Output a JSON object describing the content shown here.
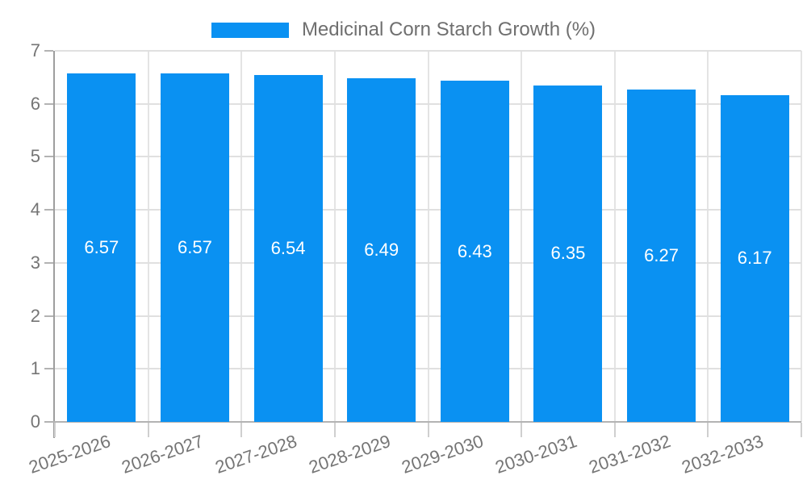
{
  "legend": {
    "label": "Medicinal Corn Starch Growth (%)"
  },
  "chart_data": {
    "type": "bar",
    "title": "Medicinal Corn Starch Growth (%)",
    "legend_position": "top-center",
    "grid": true,
    "categories": [
      "2025-2026",
      "2026-2027",
      "2027-2028",
      "2028-2029",
      "2029-2030",
      "2030-2031",
      "2031-2032",
      "2032-2033"
    ],
    "values": [
      6.57,
      6.57,
      6.54,
      6.49,
      6.43,
      6.35,
      6.27,
      6.17
    ],
    "bar_labels": [
      "6.57",
      "6.57",
      "6.54",
      "6.49",
      "6.43",
      "6.35",
      "6.27",
      "6.17"
    ],
    "xlabel": "",
    "ylabel": "",
    "ylim": [
      0,
      7
    ],
    "yticks": [
      0,
      1,
      2,
      3,
      4,
      5,
      6,
      7
    ],
    "colors": {
      "bar": "#0a91f2",
      "bar_label": "#ffffff",
      "axis_text": "#757575",
      "legend_text": "#6f6f6f",
      "grid_line": "#e0e0e0",
      "axis_line_y": "#9e9e9e",
      "axis_line_x": "#b3b3b3",
      "background": "#ffffff"
    }
  }
}
